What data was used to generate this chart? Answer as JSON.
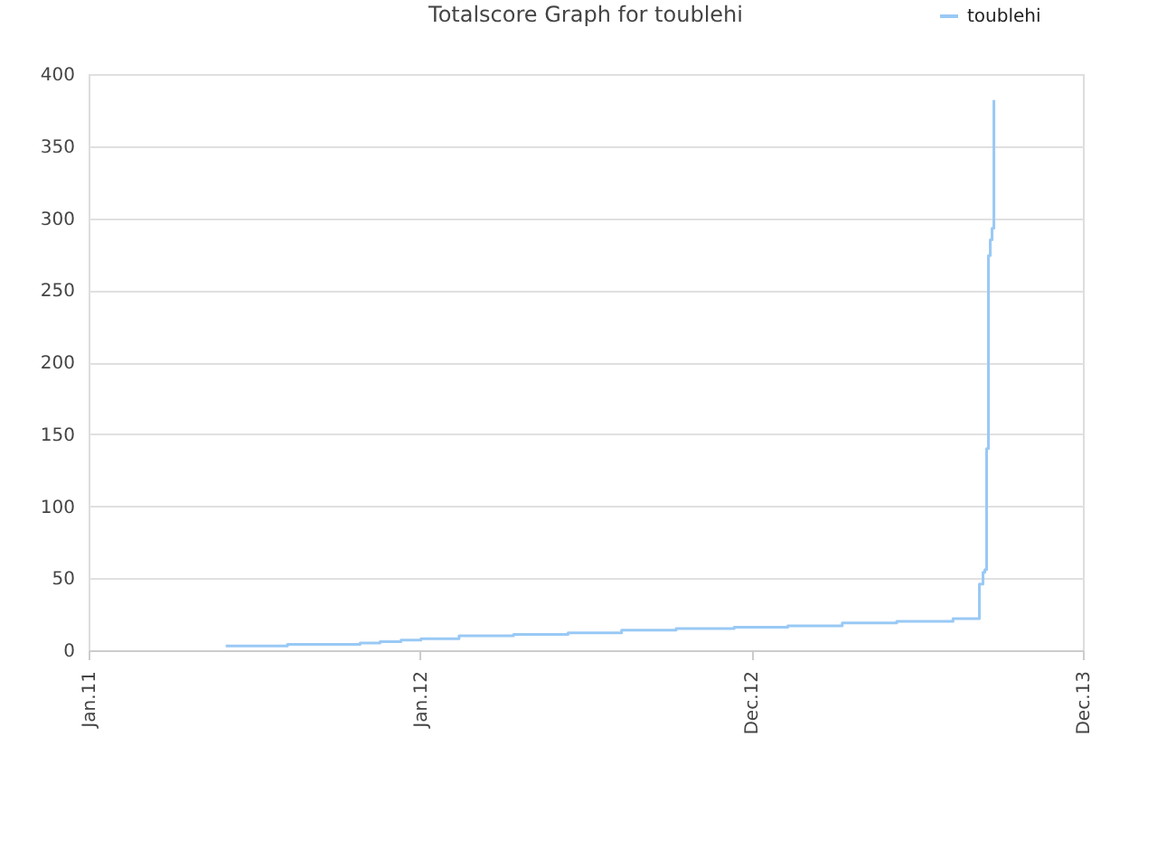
{
  "chart_data": {
    "type": "step",
    "title": "Totalscore Graph for toublehi",
    "x": [
      "2011-06-01",
      "2011-08-08",
      "2011-10-27",
      "2011-11-18",
      "2011-12-11",
      "2012-01-02",
      "2012-02-13",
      "2012-04-13",
      "2012-06-12",
      "2012-08-10",
      "2012-10-09",
      "2012-12-12",
      "2013-02-09",
      "2013-04-10",
      "2013-06-09",
      "2013-08-10",
      "2013-09-08",
      "2013-09-12",
      "2013-09-14",
      "2013-09-16",
      "2013-09-18",
      "2013-09-20",
      "2013-09-22",
      "2013-09-24"
    ],
    "series": [
      {
        "name": "toublehi",
        "color": "#99c9f5",
        "values": [
          3,
          4,
          5,
          6,
          7,
          8,
          10,
          11,
          12,
          14,
          15,
          16,
          17,
          19,
          20,
          22,
          46,
          54,
          56,
          140,
          274,
          285,
          293,
          382
        ]
      }
    ],
    "xlim": [
      "2011-01-01",
      "2013-12-31"
    ],
    "xticks": [
      {
        "value": "2011-01-01",
        "label": "Jan.11"
      },
      {
        "value": "2012-01-01",
        "label": "Jan.12"
      },
      {
        "value": "2012-12-31",
        "label": "Dec.12"
      },
      {
        "value": "2013-12-31",
        "label": "Dec.13"
      }
    ],
    "ylim": [
      0,
      400
    ],
    "yticks": [
      0,
      50,
      100,
      150,
      200,
      250,
      300,
      350,
      400
    ],
    "grid": "y",
    "legend": "top right",
    "marker": "none",
    "line_style": "solid"
  }
}
